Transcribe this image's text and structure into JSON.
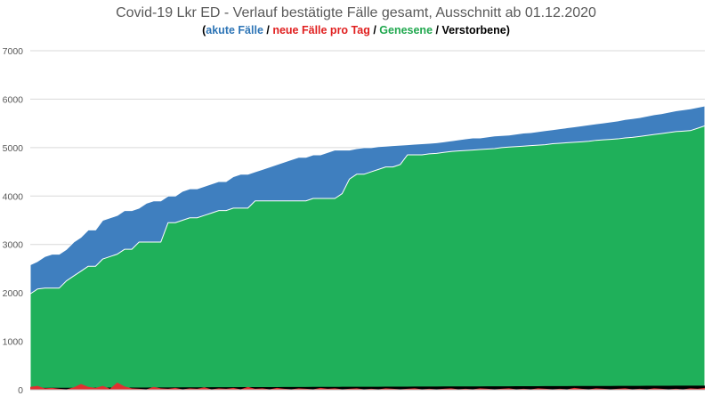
{
  "chart_data": {
    "type": "area",
    "title": "Covid-19 Lkr ED - Verlauf bestätigte Fälle gesamt, Ausschnitt ab 01.12.2020",
    "subtitle_parts": [
      {
        "text": "(",
        "color": "#000000"
      },
      {
        "text": "akute Fälle",
        "color": "#2e75b6"
      },
      {
        "text": " / ",
        "color": "#000000"
      },
      {
        "text": "neue Fälle pro Tag",
        "color": "#e02020"
      },
      {
        "text": " / ",
        "color": "#000000"
      },
      {
        "text": "Genesene",
        "color": "#21a84f"
      },
      {
        "text": " / ",
        "color": "#000000"
      },
      {
        "text": "Verstorbene",
        "color": "#000000"
      },
      {
        "text": ")",
        "color": "#000000"
      }
    ],
    "xlabel": "",
    "ylabel": "",
    "ylim": [
      0,
      7000
    ],
    "yticks": [
      "0",
      "1000",
      "2000",
      "3000",
      "4000",
      "5000",
      "6000",
      "7000"
    ],
    "grid": true,
    "colors": {
      "total": "#3f7fbf",
      "recovered": "#1fb05a",
      "deaths": "#000000",
      "new_cases": "#e03030"
    },
    "series": [
      {
        "name": "akute Fälle",
        "role": "total",
        "values": [
          2580,
          2650,
          2750,
          2800,
          2800,
          2900,
          3050,
          3150,
          3300,
          3300,
          3500,
          3550,
          3600,
          3700,
          3700,
          3750,
          3850,
          3900,
          3900,
          4000,
          4000,
          4100,
          4150,
          4150,
          4200,
          4250,
          4300,
          4300,
          4400,
          4450,
          4450,
          4500,
          4550,
          4600,
          4650,
          4700,
          4750,
          4800,
          4800,
          4850,
          4850,
          4900,
          4950,
          4950,
          4950,
          4980,
          5000,
          5000,
          5020,
          5030,
          5040,
          5050,
          5060,
          5070,
          5080,
          5090,
          5100,
          5120,
          5140,
          5160,
          5180,
          5200,
          5200,
          5220,
          5240,
          5250,
          5260,
          5280,
          5300,
          5310,
          5330,
          5350,
          5370,
          5390,
          5410,
          5430,
          5450,
          5470,
          5490,
          5510,
          5530,
          5550,
          5580,
          5600,
          5620,
          5650,
          5680,
          5700,
          5730,
          5760,
          5780,
          5800,
          5830,
          5860
        ]
      },
      {
        "name": "Genesene",
        "role": "recovered",
        "values": [
          1980,
          2080,
          2100,
          2100,
          2100,
          2250,
          2350,
          2450,
          2550,
          2550,
          2700,
          2750,
          2800,
          2900,
          2900,
          3050,
          3050,
          3050,
          3050,
          3450,
          3450,
          3500,
          3550,
          3550,
          3600,
          3650,
          3700,
          3700,
          3750,
          3750,
          3750,
          3900,
          3900,
          3900,
          3900,
          3900,
          3900,
          3900,
          3900,
          3950,
          3950,
          3950,
          3950,
          4050,
          4350,
          4450,
          4450,
          4500,
          4550,
          4600,
          4600,
          4650,
          4850,
          4850,
          4850,
          4870,
          4880,
          4900,
          4920,
          4930,
          4940,
          4950,
          4960,
          4970,
          4980,
          5000,
          5010,
          5020,
          5030,
          5040,
          5050,
          5060,
          5080,
          5090,
          5100,
          5110,
          5120,
          5130,
          5150,
          5160,
          5170,
          5180,
          5200,
          5210,
          5230,
          5250,
          5270,
          5290,
          5310,
          5330,
          5340,
          5350,
          5400,
          5450
        ]
      },
      {
        "name": "Verstorbene",
        "role": "deaths",
        "values": [
          40,
          40,
          40,
          41,
          41,
          42,
          42,
          43,
          43,
          44,
          44,
          45,
          45,
          46,
          46,
          47,
          47,
          48,
          48,
          49,
          49,
          50,
          50,
          51,
          51,
          52,
          52,
          53,
          53,
          54,
          54,
          55,
          55,
          56,
          56,
          57,
          57,
          58,
          58,
          59,
          59,
          60,
          60,
          61,
          61,
          62,
          62,
          63,
          63,
          64,
          64,
          65,
          65,
          66,
          66,
          67,
          67,
          68,
          68,
          69,
          69,
          70,
          70,
          71,
          71,
          72,
          72,
          73,
          73,
          74,
          74,
          75,
          75,
          76,
          76,
          77,
          77,
          78,
          78,
          79,
          79,
          80,
          80,
          81,
          81,
          82,
          82,
          83,
          83,
          84,
          84,
          85,
          85,
          85
        ]
      },
      {
        "name": "neue Fälle pro Tag",
        "role": "new_cases",
        "values": [
          60,
          80,
          30,
          40,
          20,
          10,
          50,
          120,
          60,
          40,
          80,
          20,
          150,
          70,
          30,
          20,
          10,
          60,
          30,
          20,
          40,
          10,
          30,
          20,
          50,
          10,
          30,
          20,
          40,
          10,
          60,
          20,
          30,
          10,
          40,
          20,
          10,
          30,
          20,
          10,
          40,
          20,
          30,
          10,
          20,
          30,
          10,
          20,
          10,
          30,
          20,
          10,
          20,
          30,
          10,
          20,
          10,
          20,
          30,
          10,
          20,
          10,
          30,
          20,
          10,
          20,
          30,
          10,
          20,
          10,
          30,
          20,
          10,
          20,
          10,
          40,
          20,
          10,
          30,
          20,
          10,
          20,
          30,
          10,
          20,
          10,
          30,
          20,
          10,
          20,
          10,
          30,
          20,
          40
        ]
      }
    ]
  }
}
